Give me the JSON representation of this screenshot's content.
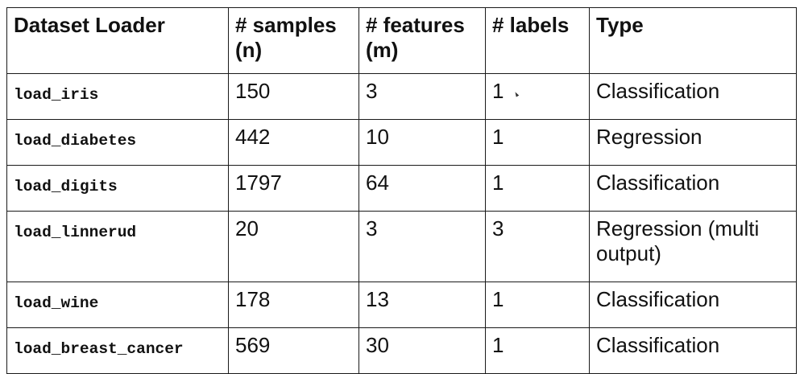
{
  "table": {
    "headers": [
      {
        "line1": "Dataset Loader",
        "line2": ""
      },
      {
        "line1": "# samples",
        "line2": "(n)"
      },
      {
        "line1": "# features",
        "line2": "(m)"
      },
      {
        "line1": "# labels",
        "line2": ""
      },
      {
        "line1": "Type",
        "line2": ""
      }
    ],
    "rows": [
      {
        "loader": "load_iris",
        "samples": "150",
        "features": "3",
        "labels": "1",
        "type": "Classification"
      },
      {
        "loader": "load_diabetes",
        "samples": "442",
        "features": "10",
        "labels": "1",
        "type": "Regression"
      },
      {
        "loader": "load_digits",
        "samples": "1797",
        "features": "64",
        "labels": "1",
        "type": "Classification"
      },
      {
        "loader": "load_linnerud",
        "samples": "20",
        "features": "3",
        "labels": "3",
        "type": "Regression (multi output)"
      },
      {
        "loader": "load_wine",
        "samples": "178",
        "features": "13",
        "labels": "1",
        "type": "Classification"
      },
      {
        "loader": "load_breast_cancer",
        "samples": "569",
        "features": "30",
        "labels": "1",
        "type": "Classification"
      }
    ]
  }
}
